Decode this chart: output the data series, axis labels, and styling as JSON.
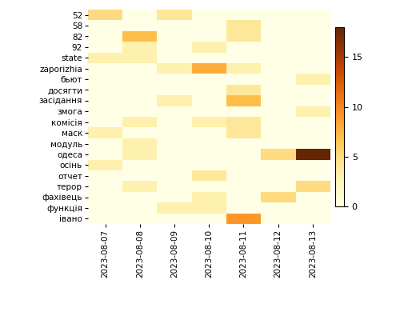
{
  "rows": [
    "52",
    "58",
    "82",
    "92",
    "state",
    "zaporizhia",
    "бьют",
    "досягти",
    "засідання",
    "змога",
    "комісія",
    "маск",
    "модуль",
    "одеса",
    "осінь",
    "отчет",
    "терор",
    "фахівець",
    "функція",
    "івано"
  ],
  "cols": [
    "2023-08-07",
    "2023-08-08",
    "2023-08-09",
    "2023-08-10",
    "2023-08-11",
    "2023-08-12",
    "2023-08-13"
  ],
  "data": [
    [
      5,
      1,
      4,
      1,
      1,
      1,
      1
    ],
    [
      1,
      1,
      1,
      1,
      4,
      1,
      1
    ],
    [
      1,
      7,
      1,
      1,
      4,
      1,
      1
    ],
    [
      1,
      3,
      1,
      3,
      1,
      1,
      1
    ],
    [
      3,
      3,
      1,
      1,
      1,
      1,
      1
    ],
    [
      1,
      1,
      3,
      8,
      3,
      1,
      1
    ],
    [
      1,
      1,
      1,
      1,
      1,
      1,
      3
    ],
    [
      1,
      1,
      1,
      1,
      4,
      1,
      1
    ],
    [
      1,
      1,
      3,
      1,
      7,
      1,
      1
    ],
    [
      1,
      1,
      1,
      1,
      1,
      1,
      3
    ],
    [
      1,
      3,
      1,
      3,
      4,
      1,
      1
    ],
    [
      3,
      1,
      1,
      1,
      4,
      1,
      1
    ],
    [
      1,
      3,
      1,
      1,
      1,
      1,
      1
    ],
    [
      1,
      3,
      1,
      1,
      1,
      5,
      18
    ],
    [
      3,
      1,
      1,
      1,
      1,
      1,
      1
    ],
    [
      1,
      1,
      1,
      4,
      1,
      1,
      1
    ],
    [
      1,
      3,
      1,
      1,
      1,
      1,
      5
    ],
    [
      1,
      1,
      1,
      3,
      1,
      5,
      1
    ],
    [
      1,
      1,
      3,
      3,
      1,
      1,
      1
    ],
    [
      1,
      1,
      1,
      1,
      9,
      1,
      1
    ]
  ],
  "cmap": "YlOrBr",
  "vmin": 0,
  "vmax": 18,
  "colorbar_ticks": [
    0,
    5,
    10,
    15
  ],
  "figsize": [
    5.0,
    4.0
  ],
  "dpi": 100,
  "bg_color": "#fffff8"
}
